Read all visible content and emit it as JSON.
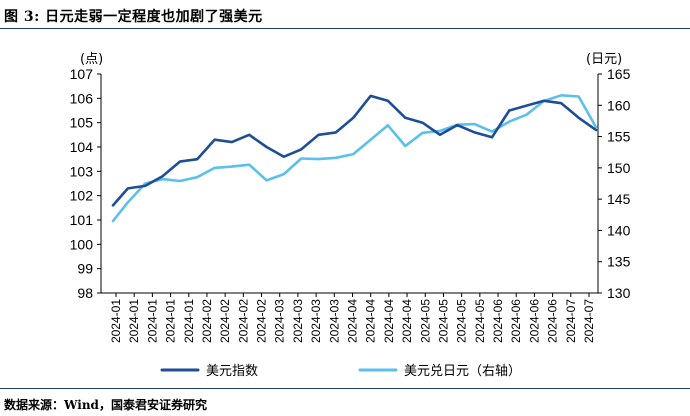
{
  "figure": {
    "title": "图 3: 日元走弱一定程度也加剧了强美元",
    "source": "数据来源：Wind，国泰君安证券研究"
  },
  "chart_data": {
    "type": "line",
    "x": [
      "2024-01-02",
      "2024-01-08",
      "2024-01-15",
      "2024-01-22",
      "2024-01-29",
      "2024-02-05",
      "2024-02-12",
      "2024-02-19",
      "2024-02-26",
      "2024-03-04",
      "2024-03-11",
      "2024-03-18",
      "2024-03-25",
      "2024-04-01",
      "2024-04-08",
      "2024-04-15",
      "2024-04-22",
      "2024-04-29",
      "2024-05-06",
      "2024-05-13",
      "2024-05-20",
      "2024-05-27",
      "2024-06-03",
      "2024-06-10",
      "2024-06-17",
      "2024-06-24",
      "2024-07-01",
      "2024-07-08",
      "2024-07-15"
    ],
    "x_tick_labels": [
      "2024-01",
      "2024-01",
      "2024-01",
      "2024-01",
      "2024-01",
      "2024-02",
      "2024-02",
      "2024-02",
      "2024-02",
      "2024-03",
      "2024-03",
      "2024-03",
      "2024-03",
      "2024-04",
      "2024-04",
      "2024-04",
      "2024-04",
      "2024-05",
      "2024-05",
      "2024-05",
      "2024-05",
      "2024-06",
      "2024-06",
      "2024-06",
      "2024-06",
      "2024-07",
      "2024-07"
    ],
    "left_axis": {
      "unit_label": "(点)",
      "ylim": [
        98,
        107
      ],
      "ticks": [
        98,
        99,
        100,
        101,
        102,
        103,
        104,
        105,
        106,
        107
      ]
    },
    "right_axis": {
      "unit_label": "(日元)",
      "ylim": [
        130,
        165
      ],
      "ticks": [
        130,
        135,
        140,
        145,
        150,
        155,
        160,
        165
      ]
    },
    "grid": false,
    "legend_position": "bottom",
    "series": [
      {
        "name": "美元指数",
        "axis": "left",
        "color": "#1f4e96",
        "values": [
          101.6,
          102.3,
          102.4,
          102.8,
          103.4,
          103.5,
          104.3,
          104.2,
          104.5,
          104.0,
          103.6,
          103.9,
          104.5,
          104.6,
          105.2,
          106.1,
          105.9,
          105.2,
          105.0,
          104.5,
          104.9,
          104.6,
          104.4,
          105.5,
          105.7,
          105.9,
          105.8,
          105.2,
          104.7
        ]
      },
      {
        "name": "美元兑日元（右轴）",
        "axis": "right",
        "color": "#5bc0eb",
        "values": [
          141.5,
          144.5,
          147.5,
          148.2,
          147.9,
          148.5,
          150.0,
          150.2,
          150.5,
          148.0,
          149.0,
          151.5,
          151.4,
          151.6,
          152.2,
          154.5,
          156.8,
          153.5,
          155.6,
          155.9,
          156.9,
          157.0,
          155.8,
          157.4,
          158.5,
          160.7,
          161.6,
          161.4,
          156.5
        ]
      }
    ]
  }
}
